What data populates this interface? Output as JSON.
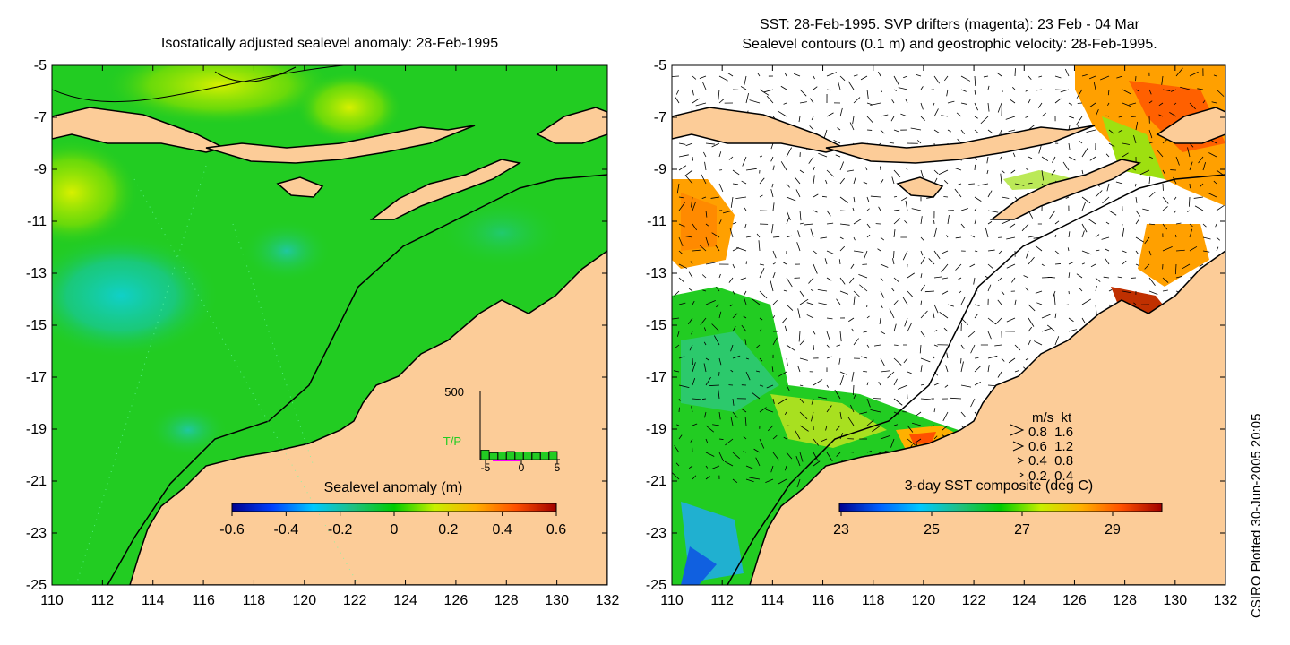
{
  "left_panel": {
    "title": "Isostatically adjusted sealevel anomaly: 28-Feb-1995",
    "colorbar": {
      "label": "Sealevel anomaly (m)",
      "ticks": [
        "-0.6",
        "-0.4",
        "-0.2",
        "0",
        "0.2",
        "0.4",
        "0.6"
      ],
      "colors": [
        "#00008f",
        "#0040ff",
        "#00c8ff",
        "#20c080",
        "#00cc00",
        "#c8f000",
        "#ffb000",
        "#ff5000",
        "#a00000"
      ]
    },
    "inset": {
      "ytick": "500",
      "label": "T/P",
      "xticks": [
        "-5",
        "0",
        "5"
      ],
      "bar_values": [
        70,
        50,
        55,
        60,
        55,
        55,
        50,
        55,
        60
      ],
      "ymax": 500
    }
  },
  "right_panel": {
    "title_line1": "SST: 28-Feb-1995. SVP drifters (magenta): 23 Feb - 04 Mar",
    "title_line2": "Sealevel contours (0.1 m) and geostrophic velocity: 28-Feb-1995.",
    "colorbar": {
      "label": "3-day SST composite (deg C)",
      "ticks": [
        "23",
        "25",
        "27",
        "29"
      ],
      "colors": [
        "#00008f",
        "#0060ff",
        "#00c8ff",
        "#20c080",
        "#00cc00",
        "#c8f000",
        "#ffb000",
        "#ff5000",
        "#a00000"
      ]
    },
    "legend": {
      "header": "m/s  kt",
      "rows": [
        "0.8  1.6",
        "0.6  1.2",
        "0.4  0.8",
        "0.2  0.4"
      ]
    }
  },
  "axes": {
    "x_ticks": [
      "110",
      "112",
      "114",
      "116",
      "118",
      "120",
      "122",
      "124",
      "126",
      "128",
      "130",
      "132"
    ],
    "y_ticks": [
      "-5",
      "-7",
      "-9",
      "-11",
      "-13",
      "-15",
      "-17",
      "-19",
      "-21",
      "-23",
      "-25"
    ],
    "lon_range": [
      110,
      132
    ],
    "lat_range": [
      -25,
      -5
    ]
  },
  "footer": "CSIRO Plotted 30-Jun-2005 20:05",
  "colors": {
    "land": "#fccc98",
    "ocean_green": "#22cc22",
    "coast": "#000000"
  }
}
